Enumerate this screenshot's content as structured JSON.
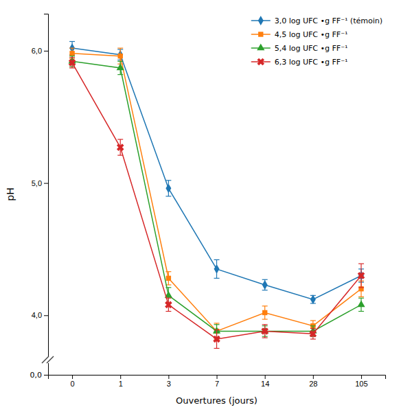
{
  "chart_data": {
    "type": "line",
    "xlabel": "Ouvertures (jours)",
    "ylabel": "pH",
    "categories": [
      "0",
      "1",
      "3",
      "7",
      "14",
      "28",
      "105"
    ],
    "series": [
      {
        "name": "3,0 log UFC •g FF⁻¹ (témoin)",
        "marker": "diamond",
        "values": [
          6.02,
          5.97,
          4.96,
          4.35,
          4.23,
          4.12,
          4.3
        ],
        "yerr": [
          0.05,
          0.04,
          0.06,
          0.07,
          0.04,
          0.03,
          0.05
        ]
      },
      {
        "name": "4,5 log UFC •g FF⁻¹",
        "marker": "square",
        "values": [
          5.98,
          5.96,
          4.28,
          3.88,
          4.02,
          3.92,
          4.2
        ],
        "yerr": [
          0.04,
          0.06,
          0.05,
          0.06,
          0.05,
          0.04,
          0.06
        ]
      },
      {
        "name": "5,4 log UFC •g FF⁻¹",
        "marker": "triangle",
        "values": [
          5.92,
          5.87,
          4.15,
          3.88,
          3.88,
          3.88,
          4.08
        ],
        "yerr": [
          0.04,
          0.05,
          0.06,
          0.05,
          0.04,
          0.04,
          0.05
        ]
      },
      {
        "name": "6,3 log UFC •g FF⁻¹",
        "marker": "x",
        "values": [
          5.91,
          5.27,
          4.08,
          3.82,
          3.88,
          3.86,
          4.3
        ],
        "yerr": [
          0.04,
          0.06,
          0.05,
          0.07,
          0.05,
          0.04,
          0.09
        ]
      }
    ],
    "ylim": [
      3.55,
      6.28
    ],
    "yticks": [
      {
        "value": 4.0,
        "label": "4,0"
      },
      {
        "value": 5.0,
        "label": "5,0"
      },
      {
        "value": 6.0,
        "label": "6,0"
      }
    ],
    "annotations": [
      {
        "text": "0,0"
      }
    ],
    "legend": "upper right",
    "grid": false
  }
}
